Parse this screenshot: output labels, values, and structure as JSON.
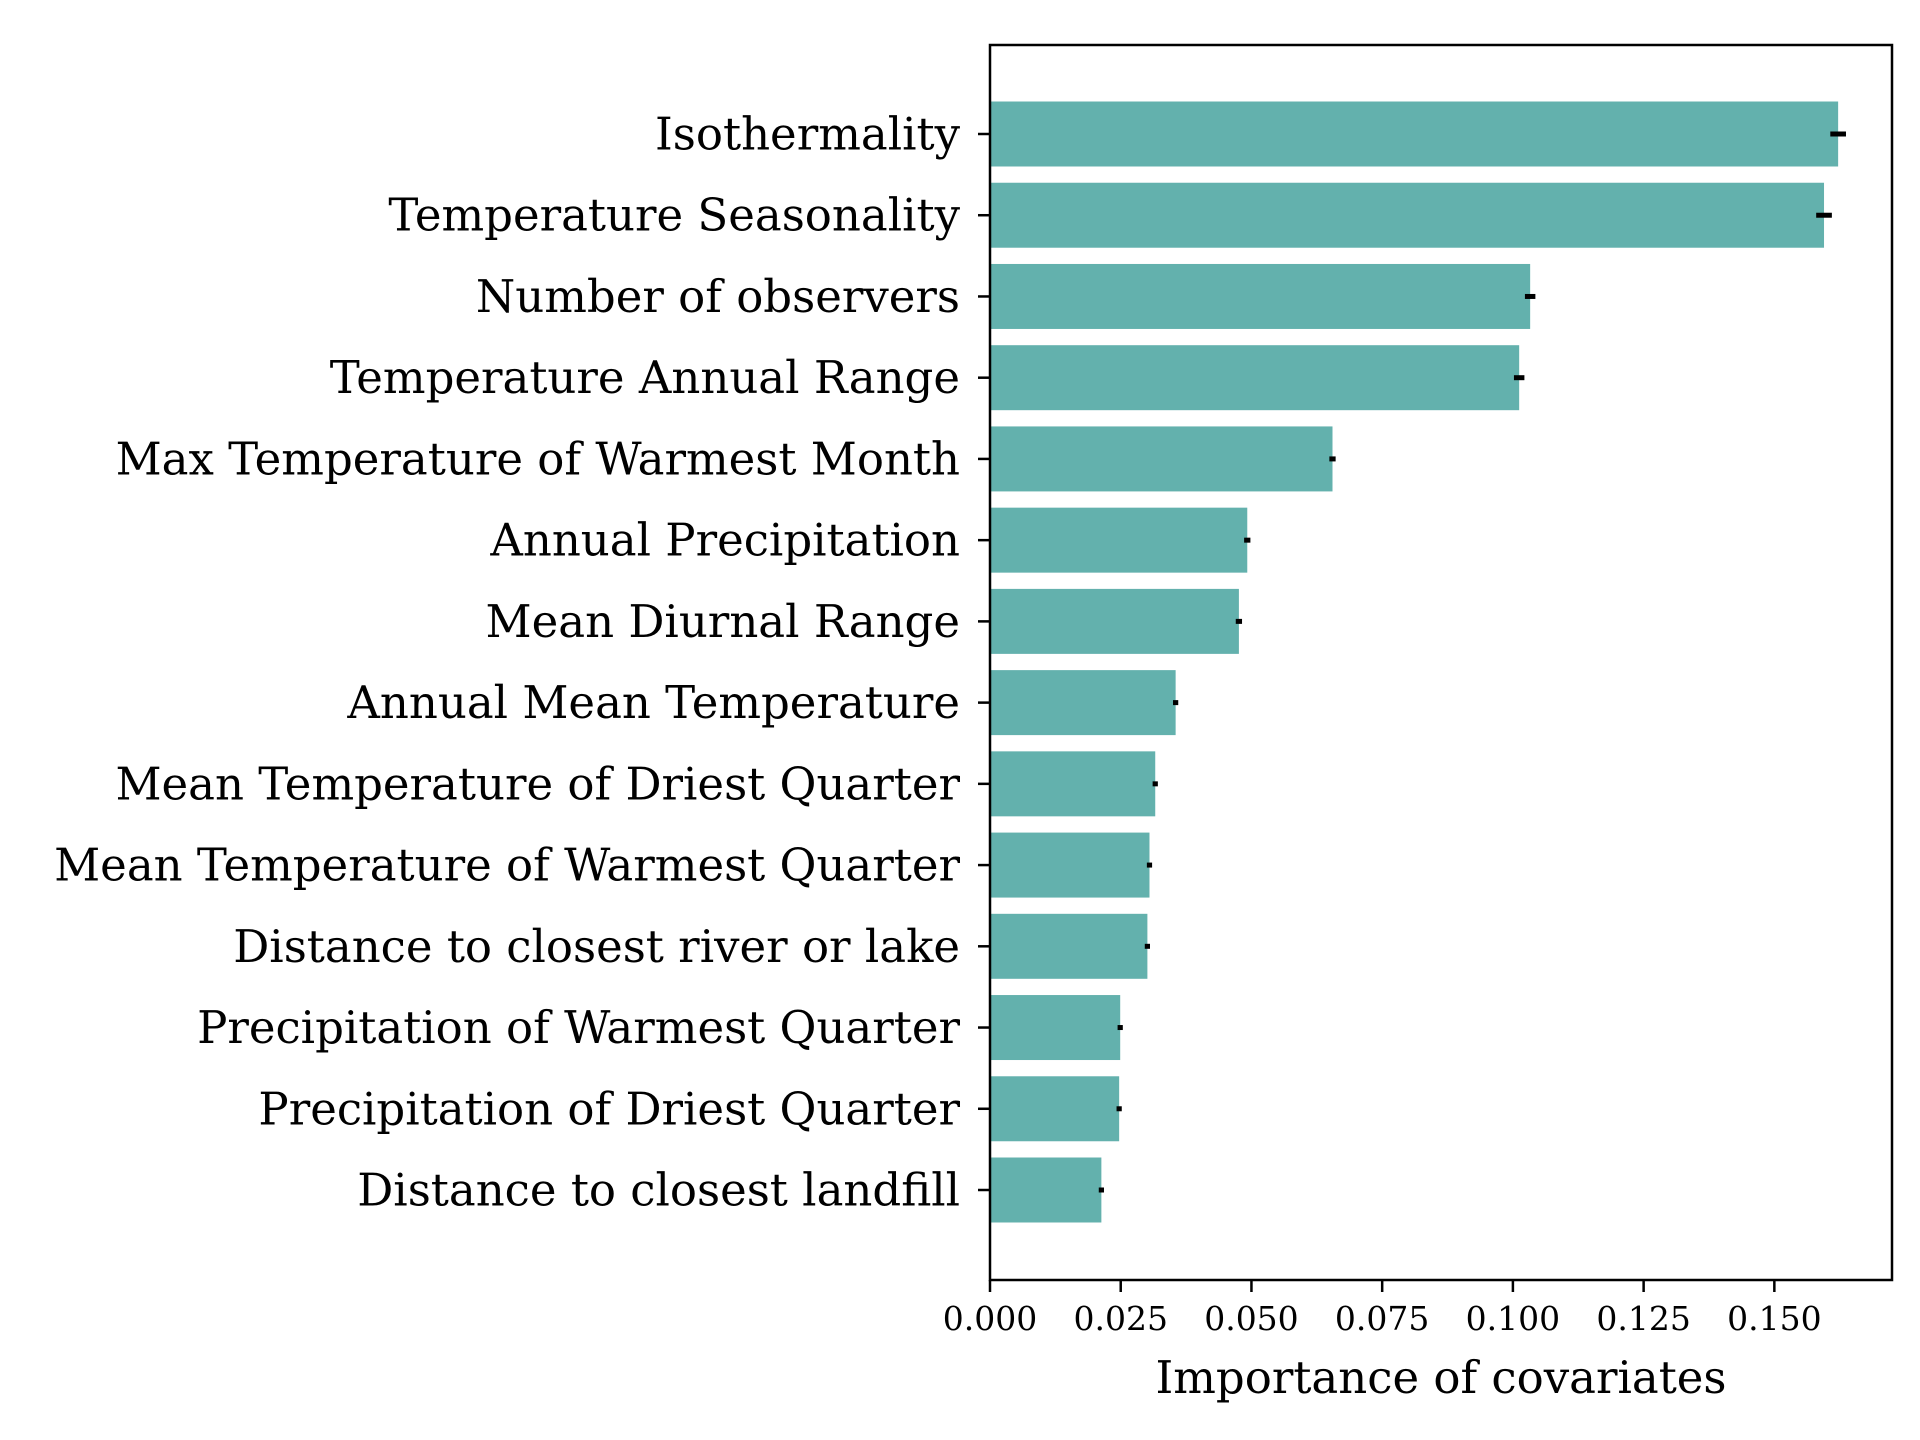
{
  "chart_data": {
    "type": "bar",
    "orientation": "horizontal",
    "title": "",
    "xlabel": "Importance of covariates",
    "ylabel": "",
    "xlim": [
      0,
      0.1725
    ],
    "xticks": [
      "0.000",
      "0.025",
      "0.050",
      "0.075",
      "0.100",
      "0.125",
      "0.150"
    ],
    "grid": false,
    "bar_color": "#63b1ad",
    "error_color": "#000000",
    "categories": [
      "Isothermality",
      "Temperature Seasonality",
      "Number of observers",
      "Temperature Annual Range",
      "Max Temperature of Warmest Month",
      "Annual Precipitation",
      "Mean Diurnal Range",
      "Annual Mean Temperature",
      "Mean Temperature of Driest Quarter",
      "Mean Temperature of Warmest Quarter",
      "Distance to closest river or lake",
      "Precipitation of Warmest Quarter",
      "Precipitation of Driest Quarter",
      "Distance to closest landfill"
    ],
    "values": [
      0.1622,
      0.1595,
      0.1033,
      0.1012,
      0.0655,
      0.0492,
      0.0476,
      0.0355,
      0.0316,
      0.0305,
      0.0301,
      0.0249,
      0.0247,
      0.0213
    ],
    "errors": [
      0.0015,
      0.0015,
      0.001,
      0.001,
      0.0006,
      0.0006,
      0.0006,
      0.0005,
      0.0005,
      0.0005,
      0.0005,
      0.0005,
      0.0005,
      0.0005
    ]
  }
}
